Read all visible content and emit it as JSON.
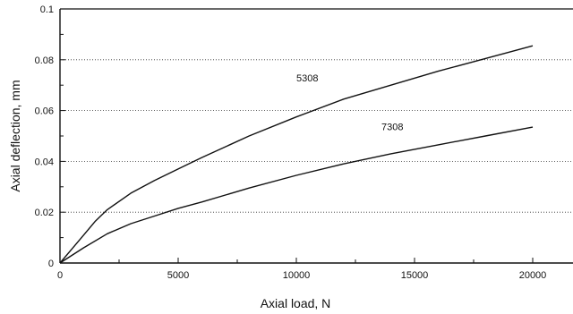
{
  "chart_data": {
    "type": "line",
    "xlabel": "Axial load, N",
    "ylabel": "Axial deflection, mm",
    "xlim": [
      0,
      20000
    ],
    "ylim": [
      0,
      0.1
    ],
    "x_ticks": [
      0,
      5000,
      10000,
      15000,
      20000
    ],
    "x_tick_labels": [
      "0",
      "5000",
      "10000",
      "15000",
      "20000"
    ],
    "y_ticks": [
      0,
      0.02,
      0.04,
      0.06,
      0.08,
      0.1
    ],
    "y_tick_labels": [
      "0",
      "0.02",
      "0.04",
      "0.06",
      "0.08",
      "0.1"
    ],
    "grid": "horizontal dotted",
    "series": [
      {
        "name": "5308",
        "x": [
          0,
          500,
          1000,
          1500,
          2000,
          3000,
          4000,
          5000,
          6000,
          8000,
          10000,
          12000,
          14000,
          16000,
          18000,
          20000
        ],
        "y": [
          0,
          0.0055,
          0.011,
          0.0165,
          0.021,
          0.0275,
          0.0325,
          0.037,
          0.0415,
          0.05,
          0.0575,
          0.0645,
          0.07,
          0.0755,
          0.0805,
          0.0855
        ]
      },
      {
        "name": "7308",
        "x": [
          0,
          500,
          1000,
          2000,
          3000,
          4000,
          5000,
          6000,
          8000,
          10000,
          12000,
          14000,
          16000,
          18000,
          20000
        ],
        "y": [
          0,
          0.003,
          0.006,
          0.0115,
          0.0155,
          0.0185,
          0.0215,
          0.024,
          0.0295,
          0.0345,
          0.039,
          0.043,
          0.0465,
          0.05,
          0.0535
        ]
      }
    ],
    "series_labels": [
      {
        "text": "5308",
        "x": 10000,
        "y": 0.0715
      },
      {
        "text": "7308",
        "x": 13600,
        "y": 0.0523
      }
    ]
  }
}
